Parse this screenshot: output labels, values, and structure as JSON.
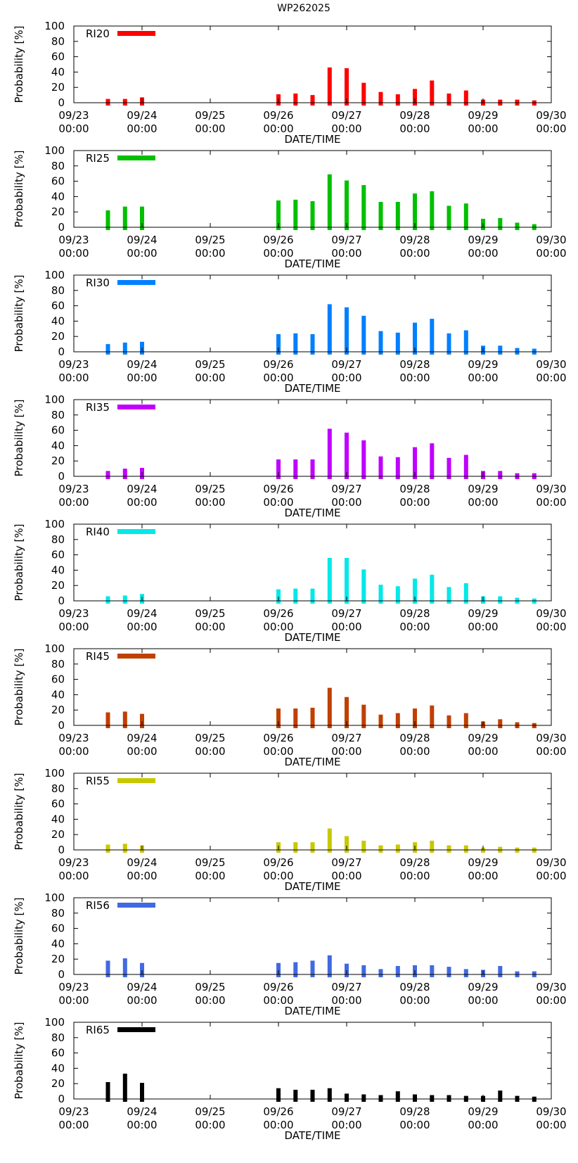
{
  "title": "WP262025",
  "chart_data": [
    {
      "type": "bar",
      "name": "RI20",
      "legend": "RI20",
      "color": "#ff0000",
      "ylabel": "Probability [%]",
      "xlabel": "DATE/TIME",
      "ylim": [
        0,
        100
      ],
      "yticks": [
        0,
        20,
        40,
        60,
        80,
        100
      ],
      "xlim": [
        0,
        168
      ],
      "xticks": [
        {
          "hours": 0,
          "label": [
            "09/23",
            "00:00"
          ]
        },
        {
          "hours": 24,
          "label": [
            "09/24",
            "00:00"
          ]
        },
        {
          "hours": 48,
          "label": [
            "09/25",
            "00:00"
          ]
        },
        {
          "hours": 72,
          "label": [
            "09/26",
            "00:00"
          ]
        },
        {
          "hours": 96,
          "label": [
            "09/27",
            "00:00"
          ]
        },
        {
          "hours": 120,
          "label": [
            "09/28",
            "00:00"
          ]
        },
        {
          "hours": 144,
          "label": [
            "09/29",
            "00:00"
          ]
        },
        {
          "hours": 168,
          "label": [
            "09/30",
            "00:00"
          ]
        }
      ],
      "x": [
        12,
        18,
        24,
        72,
        78,
        84,
        90,
        96,
        102,
        108,
        114,
        120,
        126,
        132,
        138,
        144,
        150,
        156,
        162
      ],
      "values": [
        5,
        5,
        7,
        11,
        12,
        10,
        46,
        45,
        26,
        14,
        11,
        18,
        29,
        12,
        16,
        4,
        4,
        4,
        3
      ]
    },
    {
      "type": "bar",
      "name": "RI25",
      "legend": "RI25",
      "color": "#00c000",
      "ylabel": "Probability [%]",
      "xlabel": "DATE/TIME",
      "ylim": [
        0,
        100
      ],
      "yticks": [
        0,
        20,
        40,
        60,
        80,
        100
      ],
      "xlim": [
        0,
        168
      ],
      "xticks": [
        {
          "hours": 0,
          "label": [
            "09/23",
            "00:00"
          ]
        },
        {
          "hours": 24,
          "label": [
            "09/24",
            "00:00"
          ]
        },
        {
          "hours": 48,
          "label": [
            "09/25",
            "00:00"
          ]
        },
        {
          "hours": 72,
          "label": [
            "09/26",
            "00:00"
          ]
        },
        {
          "hours": 96,
          "label": [
            "09/27",
            "00:00"
          ]
        },
        {
          "hours": 120,
          "label": [
            "09/28",
            "00:00"
          ]
        },
        {
          "hours": 144,
          "label": [
            "09/29",
            "00:00"
          ]
        },
        {
          "hours": 168,
          "label": [
            "09/30",
            "00:00"
          ]
        }
      ],
      "x": [
        12,
        18,
        24,
        72,
        78,
        84,
        90,
        96,
        102,
        108,
        114,
        120,
        126,
        132,
        138,
        144,
        150,
        156,
        162
      ],
      "values": [
        22,
        27,
        27,
        35,
        36,
        34,
        69,
        61,
        55,
        33,
        33,
        44,
        47,
        28,
        31,
        11,
        12,
        6,
        4
      ]
    },
    {
      "type": "bar",
      "name": "RI30",
      "legend": "RI30",
      "color": "#0080ff",
      "ylabel": "Probability [%]",
      "xlabel": "DATE/TIME",
      "ylim": [
        0,
        100
      ],
      "yticks": [
        0,
        20,
        40,
        60,
        80,
        100
      ],
      "xlim": [
        0,
        168
      ],
      "xticks": [
        {
          "hours": 0,
          "label": [
            "09/23",
            "00:00"
          ]
        },
        {
          "hours": 24,
          "label": [
            "09/24",
            "00:00"
          ]
        },
        {
          "hours": 48,
          "label": [
            "09/25",
            "00:00"
          ]
        },
        {
          "hours": 72,
          "label": [
            "09/26",
            "00:00"
          ]
        },
        {
          "hours": 96,
          "label": [
            "09/27",
            "00:00"
          ]
        },
        {
          "hours": 120,
          "label": [
            "09/28",
            "00:00"
          ]
        },
        {
          "hours": 144,
          "label": [
            "09/29",
            "00:00"
          ]
        },
        {
          "hours": 168,
          "label": [
            "09/30",
            "00:00"
          ]
        }
      ],
      "x": [
        12,
        18,
        24,
        72,
        78,
        84,
        90,
        96,
        102,
        108,
        114,
        120,
        126,
        132,
        138,
        144,
        150,
        156,
        162
      ],
      "values": [
        10,
        12,
        13,
        23,
        24,
        23,
        62,
        58,
        47,
        27,
        25,
        38,
        43,
        24,
        28,
        8,
        8,
        5,
        4
      ]
    },
    {
      "type": "bar",
      "name": "RI35",
      "legend": "RI35",
      "color": "#c000ff",
      "ylabel": "Probability [%]",
      "xlabel": "DATE/TIME",
      "ylim": [
        0,
        100
      ],
      "yticks": [
        0,
        20,
        40,
        60,
        80,
        100
      ],
      "xlim": [
        0,
        168
      ],
      "xticks": [
        {
          "hours": 0,
          "label": [
            "09/23",
            "00:00"
          ]
        },
        {
          "hours": 24,
          "label": [
            "09/24",
            "00:00"
          ]
        },
        {
          "hours": 48,
          "label": [
            "09/25",
            "00:00"
          ]
        },
        {
          "hours": 72,
          "label": [
            "09/26",
            "00:00"
          ]
        },
        {
          "hours": 96,
          "label": [
            "09/27",
            "00:00"
          ]
        },
        {
          "hours": 120,
          "label": [
            "09/28",
            "00:00"
          ]
        },
        {
          "hours": 144,
          "label": [
            "09/29",
            "00:00"
          ]
        },
        {
          "hours": 168,
          "label": [
            "09/30",
            "00:00"
          ]
        }
      ],
      "x": [
        12,
        18,
        24,
        72,
        78,
        84,
        90,
        96,
        102,
        108,
        114,
        120,
        126,
        132,
        138,
        144,
        150,
        156,
        162
      ],
      "values": [
        7,
        10,
        11,
        22,
        22,
        22,
        62,
        57,
        47,
        26,
        25,
        38,
        43,
        24,
        28,
        7,
        7,
        4,
        4
      ]
    },
    {
      "type": "bar",
      "name": "RI40",
      "legend": "RI40",
      "color": "#00e8e8",
      "ylabel": "Probability [%]",
      "xlabel": "DATE/TIME",
      "ylim": [
        0,
        100
      ],
      "yticks": [
        0,
        20,
        40,
        60,
        80,
        100
      ],
      "xlim": [
        0,
        168
      ],
      "xticks": [
        {
          "hours": 0,
          "label": [
            "09/23",
            "00:00"
          ]
        },
        {
          "hours": 24,
          "label": [
            "09/24",
            "00:00"
          ]
        },
        {
          "hours": 48,
          "label": [
            "09/25",
            "00:00"
          ]
        },
        {
          "hours": 72,
          "label": [
            "09/26",
            "00:00"
          ]
        },
        {
          "hours": 96,
          "label": [
            "09/27",
            "00:00"
          ]
        },
        {
          "hours": 120,
          "label": [
            "09/28",
            "00:00"
          ]
        },
        {
          "hours": 144,
          "label": [
            "09/29",
            "00:00"
          ]
        },
        {
          "hours": 168,
          "label": [
            "09/30",
            "00:00"
          ]
        }
      ],
      "x": [
        12,
        18,
        24,
        72,
        78,
        84,
        90,
        96,
        102,
        108,
        114,
        120,
        126,
        132,
        138,
        144,
        150,
        156,
        162
      ],
      "values": [
        6,
        7,
        9,
        15,
        16,
        16,
        56,
        56,
        41,
        21,
        19,
        29,
        34,
        18,
        23,
        6,
        6,
        4,
        3
      ]
    },
    {
      "type": "bar",
      "name": "RI45",
      "legend": "RI45",
      "color": "#c04000",
      "ylabel": "Probability [%]",
      "xlabel": "DATE/TIME",
      "ylim": [
        0,
        100
      ],
      "yticks": [
        0,
        20,
        40,
        60,
        80,
        100
      ],
      "xlim": [
        0,
        168
      ],
      "xticks": [
        {
          "hours": 0,
          "label": [
            "09/23",
            "00:00"
          ]
        },
        {
          "hours": 24,
          "label": [
            "09/24",
            "00:00"
          ]
        },
        {
          "hours": 48,
          "label": [
            "09/25",
            "00:00"
          ]
        },
        {
          "hours": 72,
          "label": [
            "09/26",
            "00:00"
          ]
        },
        {
          "hours": 96,
          "label": [
            "09/27",
            "00:00"
          ]
        },
        {
          "hours": 120,
          "label": [
            "09/28",
            "00:00"
          ]
        },
        {
          "hours": 144,
          "label": [
            "09/29",
            "00:00"
          ]
        },
        {
          "hours": 168,
          "label": [
            "09/30",
            "00:00"
          ]
        }
      ],
      "x": [
        12,
        18,
        24,
        72,
        78,
        84,
        90,
        96,
        102,
        108,
        114,
        120,
        126,
        132,
        138,
        144,
        150,
        156,
        162
      ],
      "values": [
        17,
        18,
        15,
        22,
        22,
        23,
        49,
        37,
        27,
        14,
        16,
        22,
        26,
        13,
        16,
        5,
        8,
        4,
        3
      ]
    },
    {
      "type": "bar",
      "name": "RI55",
      "legend": "RI55",
      "color": "#c8c800",
      "ylabel": "Probability [%]",
      "xlabel": "DATE/TIME",
      "ylim": [
        0,
        100
      ],
      "yticks": [
        0,
        20,
        40,
        60,
        80,
        100
      ],
      "xlim": [
        0,
        168
      ],
      "xticks": [
        {
          "hours": 0,
          "label": [
            "09/23",
            "00:00"
          ]
        },
        {
          "hours": 24,
          "label": [
            "09/24",
            "00:00"
          ]
        },
        {
          "hours": 48,
          "label": [
            "09/25",
            "00:00"
          ]
        },
        {
          "hours": 72,
          "label": [
            "09/26",
            "00:00"
          ]
        },
        {
          "hours": 96,
          "label": [
            "09/27",
            "00:00"
          ]
        },
        {
          "hours": 120,
          "label": [
            "09/28",
            "00:00"
          ]
        },
        {
          "hours": 144,
          "label": [
            "09/29",
            "00:00"
          ]
        },
        {
          "hours": 168,
          "label": [
            "09/30",
            "00:00"
          ]
        }
      ],
      "x": [
        12,
        18,
        24,
        72,
        78,
        84,
        90,
        96,
        102,
        108,
        114,
        120,
        126,
        132,
        138,
        144,
        150,
        156,
        162
      ],
      "values": [
        7,
        8,
        6,
        10,
        10,
        10,
        28,
        18,
        12,
        6,
        7,
        10,
        12,
        6,
        6,
        3,
        4,
        3,
        3
      ]
    },
    {
      "type": "bar",
      "name": "RI56",
      "legend": "RI56",
      "color": "#4169e1",
      "ylabel": "Probability [%]",
      "xlabel": "DATE/TIME",
      "ylim": [
        0,
        100
      ],
      "yticks": [
        0,
        20,
        40,
        60,
        80,
        100
      ],
      "xlim": [
        0,
        168
      ],
      "xticks": [
        {
          "hours": 0,
          "label": [
            "09/23",
            "00:00"
          ]
        },
        {
          "hours": 24,
          "label": [
            "09/24",
            "00:00"
          ]
        },
        {
          "hours": 48,
          "label": [
            "09/25",
            "00:00"
          ]
        },
        {
          "hours": 72,
          "label": [
            "09/26",
            "00:00"
          ]
        },
        {
          "hours": 96,
          "label": [
            "09/27",
            "00:00"
          ]
        },
        {
          "hours": 120,
          "label": [
            "09/28",
            "00:00"
          ]
        },
        {
          "hours": 144,
          "label": [
            "09/29",
            "00:00"
          ]
        },
        {
          "hours": 168,
          "label": [
            "09/30",
            "00:00"
          ]
        }
      ],
      "x": [
        12,
        18,
        24,
        72,
        78,
        84,
        90,
        96,
        102,
        108,
        114,
        120,
        126,
        132,
        138,
        144,
        150,
        156,
        162
      ],
      "values": [
        18,
        21,
        15,
        15,
        16,
        18,
        25,
        14,
        12,
        7,
        11,
        12,
        12,
        10,
        7,
        6,
        11,
        4,
        4
      ]
    },
    {
      "type": "bar",
      "name": "RI65",
      "legend": "RI65",
      "color": "#000000",
      "ylabel": "Probability [%]",
      "xlabel": "DATE/TIME",
      "ylim": [
        0,
        100
      ],
      "yticks": [
        0,
        20,
        40,
        60,
        80,
        100
      ],
      "xlim": [
        0,
        168
      ],
      "xticks": [
        {
          "hours": 0,
          "label": [
            "09/23",
            "00:00"
          ]
        },
        {
          "hours": 24,
          "label": [
            "09/24",
            "00:00"
          ]
        },
        {
          "hours": 48,
          "label": [
            "09/25",
            "00:00"
          ]
        },
        {
          "hours": 72,
          "label": [
            "09/26",
            "00:00"
          ]
        },
        {
          "hours": 96,
          "label": [
            "09/27",
            "00:00"
          ]
        },
        {
          "hours": 120,
          "label": [
            "09/28",
            "00:00"
          ]
        },
        {
          "hours": 144,
          "label": [
            "09/29",
            "00:00"
          ]
        },
        {
          "hours": 168,
          "label": [
            "09/30",
            "00:00"
          ]
        }
      ],
      "x": [
        12,
        18,
        24,
        72,
        78,
        84,
        90,
        96,
        102,
        108,
        114,
        120,
        126,
        132,
        138,
        144,
        150,
        156,
        162
      ],
      "values": [
        22,
        33,
        21,
        14,
        12,
        12,
        14,
        7,
        6,
        5,
        10,
        6,
        5,
        5,
        4,
        4,
        11,
        4,
        3
      ]
    }
  ]
}
